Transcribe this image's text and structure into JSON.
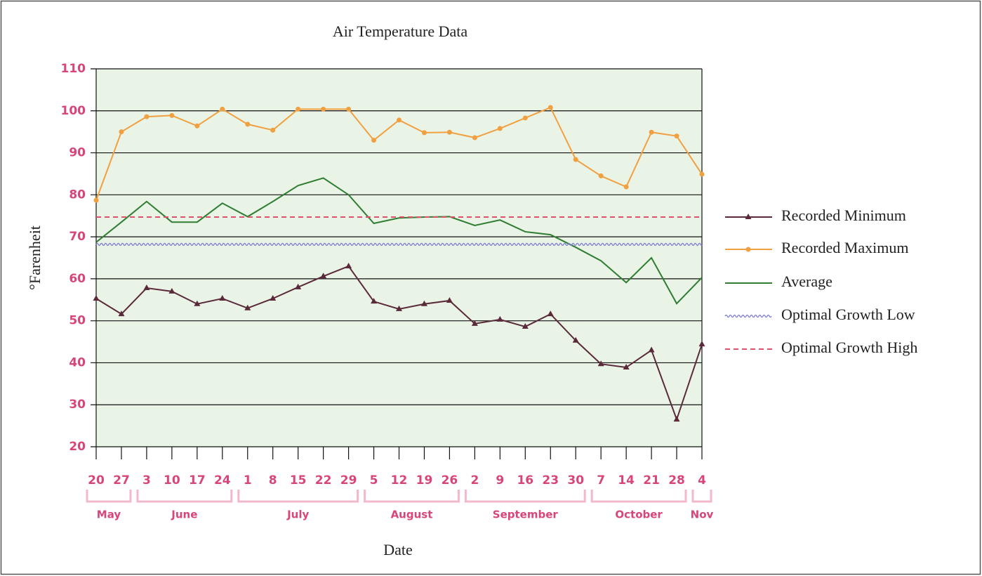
{
  "chart_data": {
    "type": "line",
    "title": "Air Temperature Data",
    "x_label": "Date",
    "y_label": "°Farenheit",
    "categories": [
      "20",
      "27",
      "3",
      "10",
      "17",
      "24",
      "1",
      "8",
      "15",
      "22",
      "29",
      "5",
      "12",
      "19",
      "26",
      "2",
      "9",
      "16",
      "23",
      "30",
      "7",
      "14",
      "21",
      "28",
      "4"
    ],
    "month_groups": [
      {
        "name": "May",
        "count": 2
      },
      {
        "name": "June",
        "count": 4
      },
      {
        "name": "July",
        "count": 5
      },
      {
        "name": "August",
        "count": 4
      },
      {
        "name": "September",
        "count": 5
      },
      {
        "name": "October",
        "count": 4
      },
      {
        "name": "Nov",
        "count": 1
      }
    ],
    "series": [
      {
        "name": "Recorded Minimum",
        "color": "#5a2a3a",
        "marker": "triangle",
        "values": [
          55.3,
          51.6,
          57.8,
          57,
          54,
          55.3,
          53,
          55.3,
          58,
          60.6,
          63,
          54.6,
          52.8,
          54,
          54.8,
          49.3,
          50.3,
          48.6,
          51.6,
          45.3,
          39.7,
          38.9,
          43,
          26.5,
          44.4
        ]
      },
      {
        "name": "Recorded Maximum",
        "color": "#f0a040",
        "marker": "circle",
        "values": [
          78.7,
          95,
          98.6,
          98.9,
          96.4,
          100.4,
          96.8,
          95.4,
          100.4,
          100.4,
          100.4,
          93,
          97.8,
          94.8,
          94.9,
          93.6,
          95.8,
          98.3,
          100.8,
          88.4,
          84.5,
          81.9,
          94.9,
          94,
          84.9
        ]
      },
      {
        "name": "Average",
        "color": "#2e7d32",
        "values": [
          68.7,
          73.5,
          78.4,
          73.5,
          73.5,
          78,
          74.8,
          78.4,
          82.2,
          84,
          80,
          73.2,
          74.5,
          74.7,
          74.8,
          72.7,
          74,
          71.2,
          70.5,
          67.5,
          64.3,
          59.1,
          65,
          54.1,
          60.3
        ]
      },
      {
        "name": "Optimal Growth Low",
        "color": "#7b7bd0",
        "style": "wavy",
        "value": 68.2
      },
      {
        "name": "Optimal Growth High",
        "color": "#e0506a",
        "style": "dashed",
        "value": 74.7
      }
    ],
    "ylim": [
      20,
      110
    ],
    "yticks": [
      20,
      30,
      40,
      50,
      60,
      70,
      80,
      90,
      100,
      110
    ],
    "grid": true
  }
}
